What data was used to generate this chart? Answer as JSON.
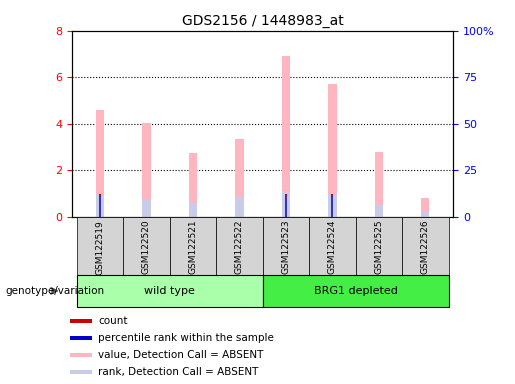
{
  "title": "GDS2156 / 1448983_at",
  "samples": [
    "GSM122519",
    "GSM122520",
    "GSM122521",
    "GSM122522",
    "GSM122523",
    "GSM122524",
    "GSM122525",
    "GSM122526"
  ],
  "pink_values": [
    4.6,
    4.05,
    2.75,
    3.35,
    6.9,
    5.7,
    2.8,
    0.8
  ],
  "blue_values": [
    1.0,
    0.75,
    0.6,
    0.85,
    1.1,
    1.0,
    0.5,
    0.2
  ],
  "red_values": [
    1.0,
    0.0,
    0.0,
    0.0,
    1.0,
    1.0,
    0.0,
    0.0
  ],
  "dark_blue_values": [
    1.0,
    0.0,
    0.0,
    0.0,
    1.0,
    1.0,
    0.0,
    0.0
  ],
  "ylim_left": [
    0,
    8
  ],
  "yticks_left": [
    0,
    2,
    4,
    6,
    8
  ],
  "yticklabels_right": [
    "0",
    "25",
    "50",
    "75",
    "100%"
  ],
  "yticks_right": [
    0,
    25,
    50,
    75,
    100
  ],
  "groups": [
    {
      "label": "wild type",
      "start": 0,
      "end": 4,
      "color": "#aaffaa"
    },
    {
      "label": "BRG1 depleted",
      "start": 4,
      "end": 8,
      "color": "#44ee44"
    }
  ],
  "group_label": "genotype/variation",
  "legend_items": [
    {
      "color": "#cc0000",
      "label": "count"
    },
    {
      "color": "#0000cc",
      "label": "percentile rank within the sample"
    },
    {
      "color": "#ffb6c1",
      "label": "value, Detection Call = ABSENT"
    },
    {
      "color": "#c8cce8",
      "label": "rank, Detection Call = ABSENT"
    }
  ],
  "bar_width": 0.18,
  "pink_color": "#ffb6c1",
  "light_blue_color": "#c8cce8",
  "red_color": "#cc0000",
  "blue_color": "#3333bb",
  "gray_box_color": "#d4d4d4",
  "plot_bg": "white"
}
